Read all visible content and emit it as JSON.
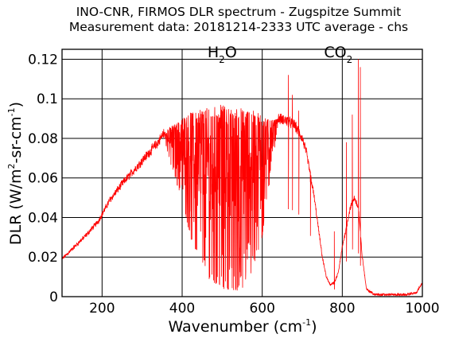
{
  "chart_data": {
    "type": "line",
    "title": "INO-CNR, FIRMOS DLR spectrum - Zugspitze Summit",
    "subtitle": "Measurement data: 20181214-2333 UTC average - chs",
    "xlabel": {
      "base": "Wavenumber (cm",
      "sup": "-1",
      "end": ")"
    },
    "ylabel": {
      "p1": "DLR (W/m",
      "s1": "2",
      "p2": "-sr-cm",
      "s2": "-1",
      "p3": ")"
    },
    "xlim": [
      100,
      1000
    ],
    "ylim": [
      0,
      0.125
    ],
    "x_ticks": [
      200,
      400,
      600,
      800,
      1000
    ],
    "y_ticks": [
      0,
      0.02,
      0.04,
      0.06,
      0.08,
      0.1,
      0.12
    ],
    "x_tick_labels": [
      "200",
      "400",
      "600",
      "800",
      "1000"
    ],
    "y_tick_labels": [
      "0",
      "0.02",
      "0.04",
      "0.06",
      "0.08",
      "0.1",
      "0.12"
    ],
    "grid": true,
    "annotations": [
      {
        "name": "h2o",
        "base": "H",
        "sub": "2",
        "end": "O",
        "x": 500,
        "y": 0.121
      },
      {
        "name": "co2",
        "base": "CO",
        "sub": "2",
        "end": "",
        "x": 790,
        "y": 0.121
      }
    ],
    "series": [
      {
        "color": "#ff0000",
        "envelope": [
          [
            100,
            0.019
          ],
          [
            130,
            0.025
          ],
          [
            160,
            0.031
          ],
          [
            190,
            0.038
          ],
          [
            220,
            0.049
          ],
          [
            250,
            0.057
          ],
          [
            280,
            0.064
          ],
          [
            310,
            0.071
          ],
          [
            340,
            0.078
          ],
          [
            355,
            0.083
          ],
          [
            370,
            0.086
          ],
          [
            400,
            0.09
          ],
          [
            420,
            0.093
          ],
          [
            440,
            0.095
          ],
          [
            460,
            0.096
          ],
          [
            480,
            0.097
          ],
          [
            500,
            0.097
          ],
          [
            520,
            0.096
          ],
          [
            540,
            0.096
          ],
          [
            560,
            0.095
          ],
          [
            580,
            0.094
          ],
          [
            600,
            0.092
          ],
          [
            620,
            0.089
          ],
          [
            640,
            0.09
          ],
          [
            660,
            0.089
          ],
          [
            680,
            0.087
          ],
          [
            700,
            0.08
          ],
          [
            710,
            0.073
          ],
          [
            720,
            0.062
          ],
          [
            730,
            0.05
          ],
          [
            740,
            0.035
          ],
          [
            750,
            0.02
          ],
          [
            760,
            0.01
          ],
          [
            770,
            0.006
          ],
          [
            780,
            0.007
          ],
          [
            790,
            0.012
          ],
          [
            800,
            0.025
          ],
          [
            810,
            0.035
          ],
          [
            820,
            0.045
          ],
          [
            830,
            0.05
          ],
          [
            840,
            0.045
          ],
          [
            850,
            0.02
          ],
          [
            860,
            0.004
          ],
          [
            880,
            0.001
          ],
          [
            960,
            0.001
          ],
          [
            985,
            0.002
          ],
          [
            1000,
            0.007
          ]
        ],
        "absorption_floor": [
          [
            355,
            0.08
          ],
          [
            380,
            0.06
          ],
          [
            400,
            0.05
          ],
          [
            420,
            0.03
          ],
          [
            440,
            0.02
          ],
          [
            460,
            0.01
          ],
          [
            500,
            0.004
          ],
          [
            540,
            0.003
          ],
          [
            560,
            0.005
          ],
          [
            580,
            0.015
          ],
          [
            600,
            0.03
          ],
          [
            620,
            0.06
          ],
          [
            640,
            0.088
          ]
        ],
        "spikes": [
          [
            665,
            0.112
          ],
          [
            675,
            0.102
          ],
          [
            691,
            0.094
          ],
          [
            720,
            0.058
          ],
          [
            780,
            0.033
          ],
          [
            810,
            0.078
          ],
          [
            825,
            0.092
          ],
          [
            840,
            0.12
          ],
          [
            845,
            0.116
          ]
        ]
      }
    ]
  }
}
